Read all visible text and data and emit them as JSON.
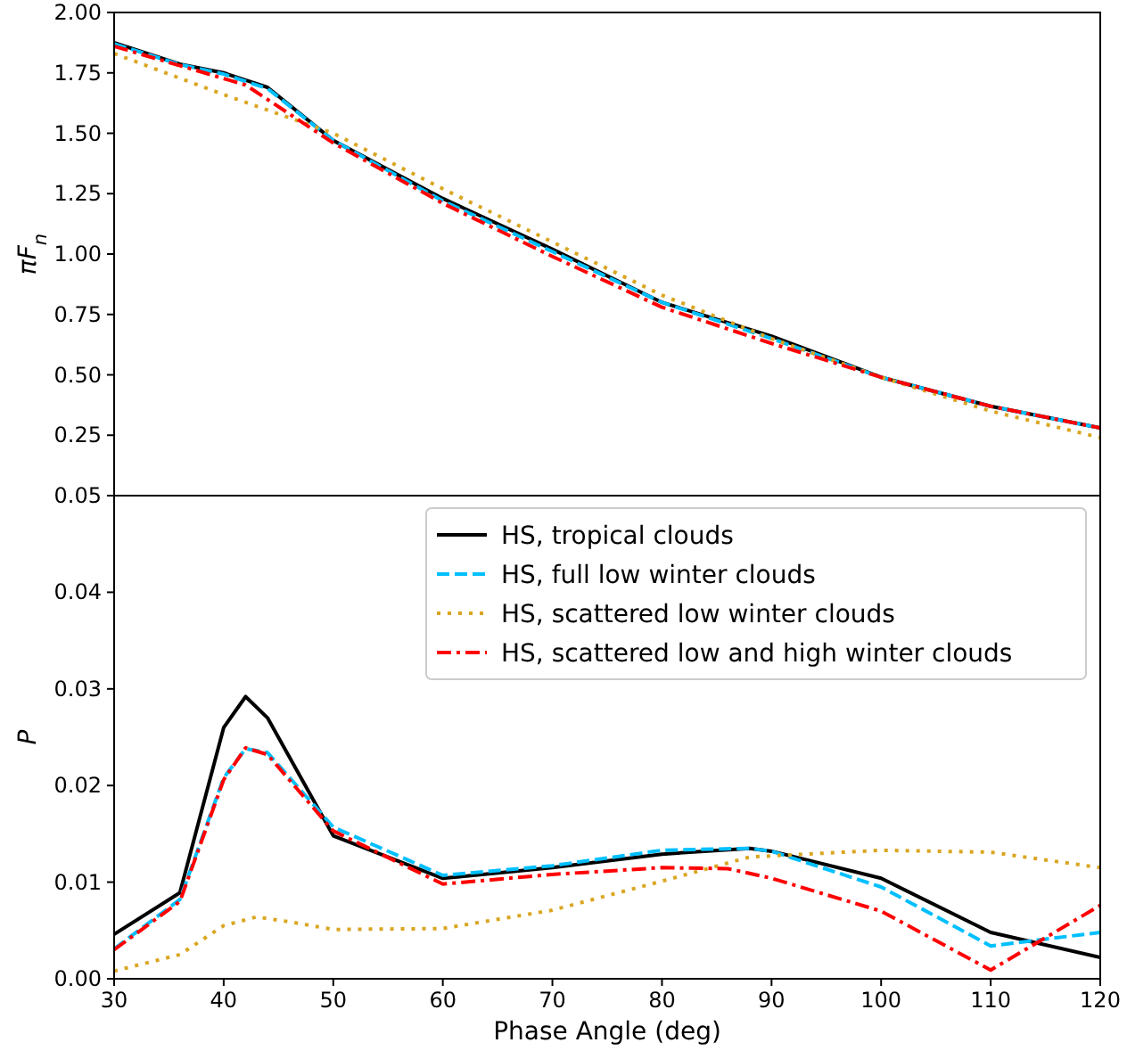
{
  "chart_data": [
    {
      "type": "line",
      "ylabel": "πF$_{n}$",
      "xlim": [
        30,
        120
      ],
      "ylim": [
        0,
        2.0
      ],
      "yticks": [
        {
          "value": 0.25,
          "label": "0.25"
        },
        {
          "value": 0.5,
          "label": "0.50"
        },
        {
          "value": 0.75,
          "label": "0.75"
        },
        {
          "value": 1.0,
          "label": "1.00"
        },
        {
          "value": 1.25,
          "label": "1.25"
        },
        {
          "value": 1.5,
          "label": "1.50"
        },
        {
          "value": 1.75,
          "label": "1.75"
        },
        {
          "value": 2.0,
          "label": "2.00"
        }
      ],
      "tick_labels": "y",
      "grid": false,
      "legend": false,
      "series": [
        {
          "color": "#000000",
          "line_style": "solid",
          "x": [
            30,
            36,
            40,
            42,
            44,
            50,
            60,
            70,
            80,
            90,
            100,
            110,
            120
          ],
          "values": [
            1.875,
            1.786,
            1.75,
            1.72,
            1.69,
            1.47,
            1.23,
            1.02,
            0.8,
            0.66,
            0.49,
            0.37,
            0.28
          ]
        },
        {
          "color": "#00bfff",
          "line_style": "dashed",
          "x": [
            30,
            36,
            40,
            42,
            44,
            50,
            60,
            70,
            80,
            90,
            100,
            110,
            120
          ],
          "values": [
            1.87,
            1.785,
            1.745,
            1.715,
            1.685,
            1.47,
            1.22,
            1.01,
            0.8,
            0.65,
            0.49,
            0.37,
            0.28
          ]
        },
        {
          "color": "#daa520",
          "line_style": "dotted",
          "x": [
            30,
            40,
            50,
            60,
            70,
            80,
            90,
            100,
            110,
            120
          ],
          "values": [
            1.83,
            1.66,
            1.5,
            1.27,
            1.05,
            0.83,
            0.65,
            0.49,
            0.35,
            0.24
          ]
        },
        {
          "color": "#ff0000",
          "line_style": "dashdot",
          "x": [
            30,
            36,
            42,
            50,
            60,
            70,
            80,
            90,
            100,
            110,
            120
          ],
          "values": [
            1.86,
            1.78,
            1.7,
            1.46,
            1.21,
            0.99,
            0.78,
            0.63,
            0.49,
            0.37,
            0.28
          ]
        }
      ]
    },
    {
      "type": "line",
      "xlabel": "Phase Angle (deg)",
      "ylabel": "P",
      "xlim": [
        30,
        120
      ],
      "ylim": [
        0,
        0.05
      ],
      "xticks": [
        30,
        40,
        50,
        60,
        70,
        80,
        90,
        100,
        110,
        120
      ],
      "yticks": [
        {
          "value": 0,
          "label": "0.00"
        },
        {
          "value": 0.01,
          "label": "0.01"
        },
        {
          "value": 0.02,
          "label": "0.02"
        },
        {
          "value": 0.03,
          "label": "0.03"
        },
        {
          "value": 0.04,
          "label": "0.04"
        },
        {
          "value": 0.05,
          "label": "0.05"
        }
      ],
      "grid": false,
      "legend": "top right",
      "series": [
        {
          "name": "HS, tropical clouds",
          "color": "#000000",
          "line_style": "solid",
          "x": [
            30,
            36,
            40,
            42,
            44,
            50,
            60,
            70,
            80,
            88,
            90,
            100,
            110,
            120
          ],
          "values": [
            0.0046,
            0.0089,
            0.026,
            0.0292,
            0.027,
            0.0148,
            0.0104,
            0.0115,
            0.0129,
            0.0135,
            0.0132,
            0.0104,
            0.0048,
            0.0022
          ]
        },
        {
          "name": "HS, full low winter clouds",
          "color": "#00bfff",
          "line_style": "dashed",
          "x": [
            30,
            36,
            40,
            42,
            44,
            50,
            60,
            70,
            80,
            88,
            90,
            100,
            110,
            120
          ],
          "values": [
            0.0031,
            0.0082,
            0.0208,
            0.0238,
            0.0234,
            0.0157,
            0.0107,
            0.0117,
            0.0133,
            0.0135,
            0.0132,
            0.0095,
            0.0034,
            0.0048
          ]
        },
        {
          "name": "HS, scattered low winter clouds",
          "color": "#daa520",
          "line_style": "dotted",
          "x": [
            30,
            36,
            40,
            43,
            46,
            50,
            60,
            70,
            80,
            88,
            100,
            110,
            120
          ],
          "values": [
            0.0008,
            0.0025,
            0.0055,
            0.0064,
            0.0059,
            0.0051,
            0.0052,
            0.0071,
            0.0101,
            0.0126,
            0.0133,
            0.0131,
            0.0115
          ]
        },
        {
          "name": "HS, scattered low and high winter clouds",
          "color": "#ff0000",
          "line_style": "dashdot",
          "x": [
            30,
            36,
            40,
            42,
            44,
            50,
            60,
            70,
            80,
            86,
            90,
            100,
            110,
            120
          ],
          "values": [
            0.003,
            0.008,
            0.0206,
            0.0239,
            0.0232,
            0.0153,
            0.0098,
            0.0108,
            0.0115,
            0.0114,
            0.0104,
            0.007,
            0.0009,
            0.0076
          ]
        }
      ]
    }
  ]
}
